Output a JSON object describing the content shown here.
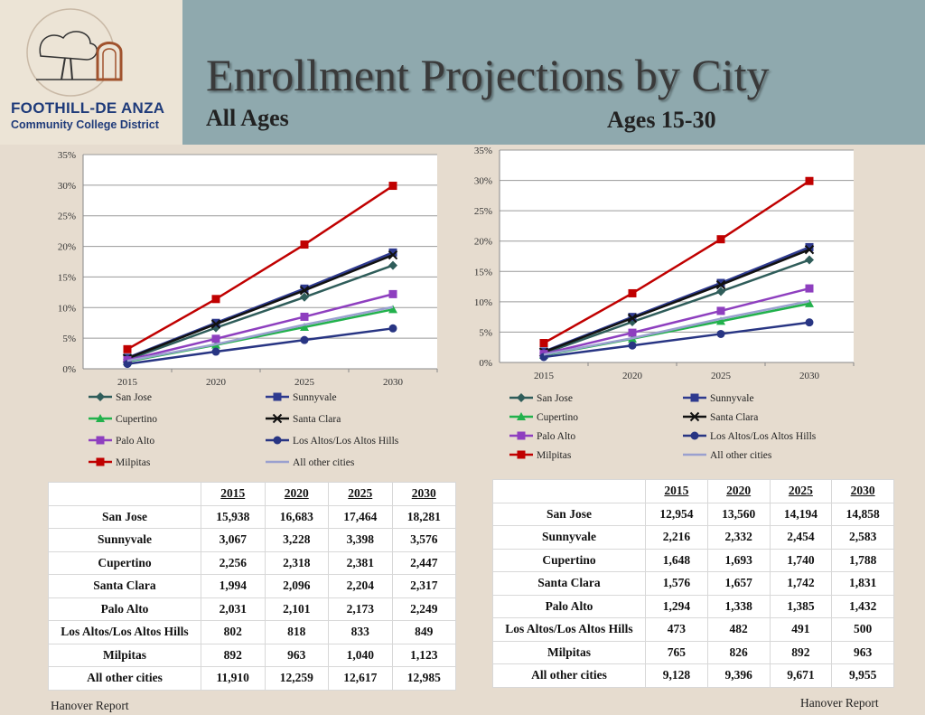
{
  "header": {
    "title": "Enrollment Projections by City",
    "subtitle_left": "All Ages",
    "subtitle_right": "Ages 15-30",
    "logo_line1": "FOOTHILL-DE ANZA",
    "logo_line2": "Community College District"
  },
  "chart_data": [
    {
      "type": "line",
      "title": "All Ages",
      "categories": [
        "2015",
        "2020",
        "2025",
        "2030"
      ],
      "ylim": [
        0,
        35
      ],
      "yticks": [
        "0%",
        "5%",
        "10%",
        "15%",
        "20%",
        "25%",
        "30%",
        "35%"
      ],
      "grid": true,
      "legend_position": "bottom",
      "series": [
        {
          "name": "San Jose",
          "color": "#2f5d5a",
          "marker": "diamond",
          "values": [
            1.5,
            6.7,
            11.7,
            16.9
          ]
        },
        {
          "name": "Sunnyvale",
          "color": "#2e3a8f",
          "marker": "square",
          "values": [
            1.8,
            7.5,
            13.1,
            19.0
          ]
        },
        {
          "name": "Cupertino",
          "color": "#22b14c",
          "marker": "triangle",
          "values": [
            1.2,
            3.9,
            6.8,
            9.7
          ]
        },
        {
          "name": "Santa Clara",
          "color": "#111111",
          "marker": "x",
          "values": [
            1.7,
            7.3,
            12.8,
            18.6
          ]
        },
        {
          "name": "Palo Alto",
          "color": "#8e3fbf",
          "marker": "square",
          "values": [
            1.4,
            4.9,
            8.5,
            12.2
          ]
        },
        {
          "name": "Los Altos/Los Altos Hills",
          "color": "#283583",
          "marker": "circle",
          "values": [
            0.8,
            2.8,
            4.7,
            6.6
          ]
        },
        {
          "name": "Milpitas",
          "color": "#c00000",
          "marker": "square",
          "values": [
            3.2,
            11.4,
            20.3,
            29.9
          ]
        },
        {
          "name": "All other cities",
          "color": "#9aa0cf",
          "marker": "none",
          "values": [
            1.3,
            4.0,
            7.2,
            10.1
          ]
        }
      ]
    },
    {
      "type": "line",
      "title": "Ages 15-30",
      "categories": [
        "2015",
        "2020",
        "2025",
        "2030"
      ],
      "ylim": [
        0,
        35
      ],
      "yticks": [
        "0%",
        "5%",
        "10%",
        "15%",
        "20%",
        "25%",
        "30%",
        "35%"
      ],
      "grid": true,
      "legend_position": "bottom",
      "series": [
        {
          "name": "San Jose",
          "color": "#2f5d5a",
          "marker": "diamond",
          "values": [
            1.5,
            6.7,
            11.7,
            16.9
          ]
        },
        {
          "name": "Sunnyvale",
          "color": "#2e3a8f",
          "marker": "square",
          "values": [
            1.8,
            7.5,
            13.1,
            19.0
          ]
        },
        {
          "name": "Cupertino",
          "color": "#22b14c",
          "marker": "triangle",
          "values": [
            1.2,
            3.9,
            6.8,
            9.7
          ]
        },
        {
          "name": "Santa Clara",
          "color": "#111111",
          "marker": "x",
          "values": [
            1.7,
            7.3,
            12.8,
            18.6
          ]
        },
        {
          "name": "Palo Alto",
          "color": "#8e3fbf",
          "marker": "square",
          "values": [
            1.4,
            4.9,
            8.5,
            12.2
          ]
        },
        {
          "name": "Los Altos/Los Altos Hills",
          "color": "#283583",
          "marker": "circle",
          "values": [
            0.9,
            2.8,
            4.7,
            6.6
          ]
        },
        {
          "name": "Milpitas",
          "color": "#c00000",
          "marker": "square",
          "values": [
            3.2,
            11.4,
            20.3,
            29.9
          ]
        },
        {
          "name": "All other cities",
          "color": "#9aa0cf",
          "marker": "none",
          "values": [
            1.3,
            4.0,
            7.2,
            10.1
          ]
        }
      ]
    }
  ],
  "tables": [
    {
      "columns": [
        "2015",
        "2020",
        "2025",
        "2030"
      ],
      "rows": [
        {
          "city": "San Jose",
          "values": [
            "15,938",
            "16,683",
            "17,464",
            "18,281"
          ]
        },
        {
          "city": "Sunnyvale",
          "values": [
            "3,067",
            "3,228",
            "3,398",
            "3,576"
          ]
        },
        {
          "city": "Cupertino",
          "values": [
            "2,256",
            "2,318",
            "2,381",
            "2,447"
          ]
        },
        {
          "city": "Santa Clara",
          "values": [
            "1,994",
            "2,096",
            "2,204",
            "2,317"
          ]
        },
        {
          "city": "Palo Alto",
          "values": [
            "2,031",
            "2,101",
            "2,173",
            "2,249"
          ]
        },
        {
          "city": "Los Altos/Los Altos Hills",
          "values": [
            "802",
            "818",
            "833",
            "849"
          ]
        },
        {
          "city": "Milpitas",
          "values": [
            "892",
            "963",
            "1,040",
            "1,123"
          ]
        },
        {
          "city": "All other cities",
          "values": [
            "11,910",
            "12,259",
            "12,617",
            "12,985"
          ]
        }
      ]
    },
    {
      "columns": [
        "2015",
        "2020",
        "2025",
        "2030"
      ],
      "rows": [
        {
          "city": "San Jose",
          "values": [
            "12,954",
            "13,560",
            "14,194",
            "14,858"
          ]
        },
        {
          "city": "Sunnyvale",
          "values": [
            "2,216",
            "2,332",
            "2,454",
            "2,583"
          ]
        },
        {
          "city": "Cupertino",
          "values": [
            "1,648",
            "1,693",
            "1,740",
            "1,788"
          ]
        },
        {
          "city": "Santa Clara",
          "values": [
            "1,576",
            "1,657",
            "1,742",
            "1,831"
          ]
        },
        {
          "city": "Palo Alto",
          "values": [
            "1,294",
            "1,338",
            "1,385",
            "1,432"
          ]
        },
        {
          "city": "Los Altos/Los Altos Hills",
          "values": [
            "473",
            "482",
            "491",
            "500"
          ]
        },
        {
          "city": "Milpitas",
          "values": [
            "765",
            "826",
            "892",
            "963"
          ]
        },
        {
          "city": "All other cities",
          "values": [
            "9,128",
            "9,396",
            "9,671",
            "9,955"
          ]
        }
      ]
    }
  ],
  "footer": {
    "left": "Hanover Report",
    "right": "Hanover Report"
  }
}
